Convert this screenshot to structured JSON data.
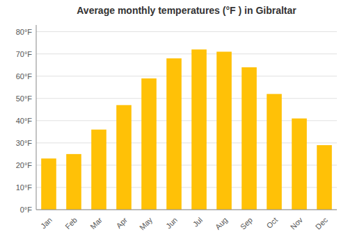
{
  "chart_data": {
    "type": "bar",
    "title": "Average monthly temperatures (°F ) in Gibraltar",
    "categories": [
      "Jan",
      "Feb",
      "Mar",
      "Apr",
      "May",
      "Jun",
      "Jul",
      "Aug",
      "Sep",
      "Oct",
      "Nov",
      "Dec"
    ],
    "values": [
      23,
      25,
      36,
      47,
      59,
      68,
      72,
      71,
      64,
      52,
      41,
      29
    ],
    "color": "#FFC107",
    "ylim": [
      0,
      83
    ],
    "yticks": [
      {
        "value": 0,
        "label": "0°F"
      },
      {
        "value": 10,
        "label": "10°F"
      },
      {
        "value": 20,
        "label": "20°F"
      },
      {
        "value": 30,
        "label": "30°F"
      },
      {
        "value": 40,
        "label": "40°F"
      },
      {
        "value": 50,
        "label": "50°F"
      },
      {
        "value": 60,
        "label": "60°F"
      },
      {
        "value": 70,
        "label": "70°F"
      },
      {
        "value": 80,
        "label": "80°F"
      }
    ],
    "grid": true
  }
}
